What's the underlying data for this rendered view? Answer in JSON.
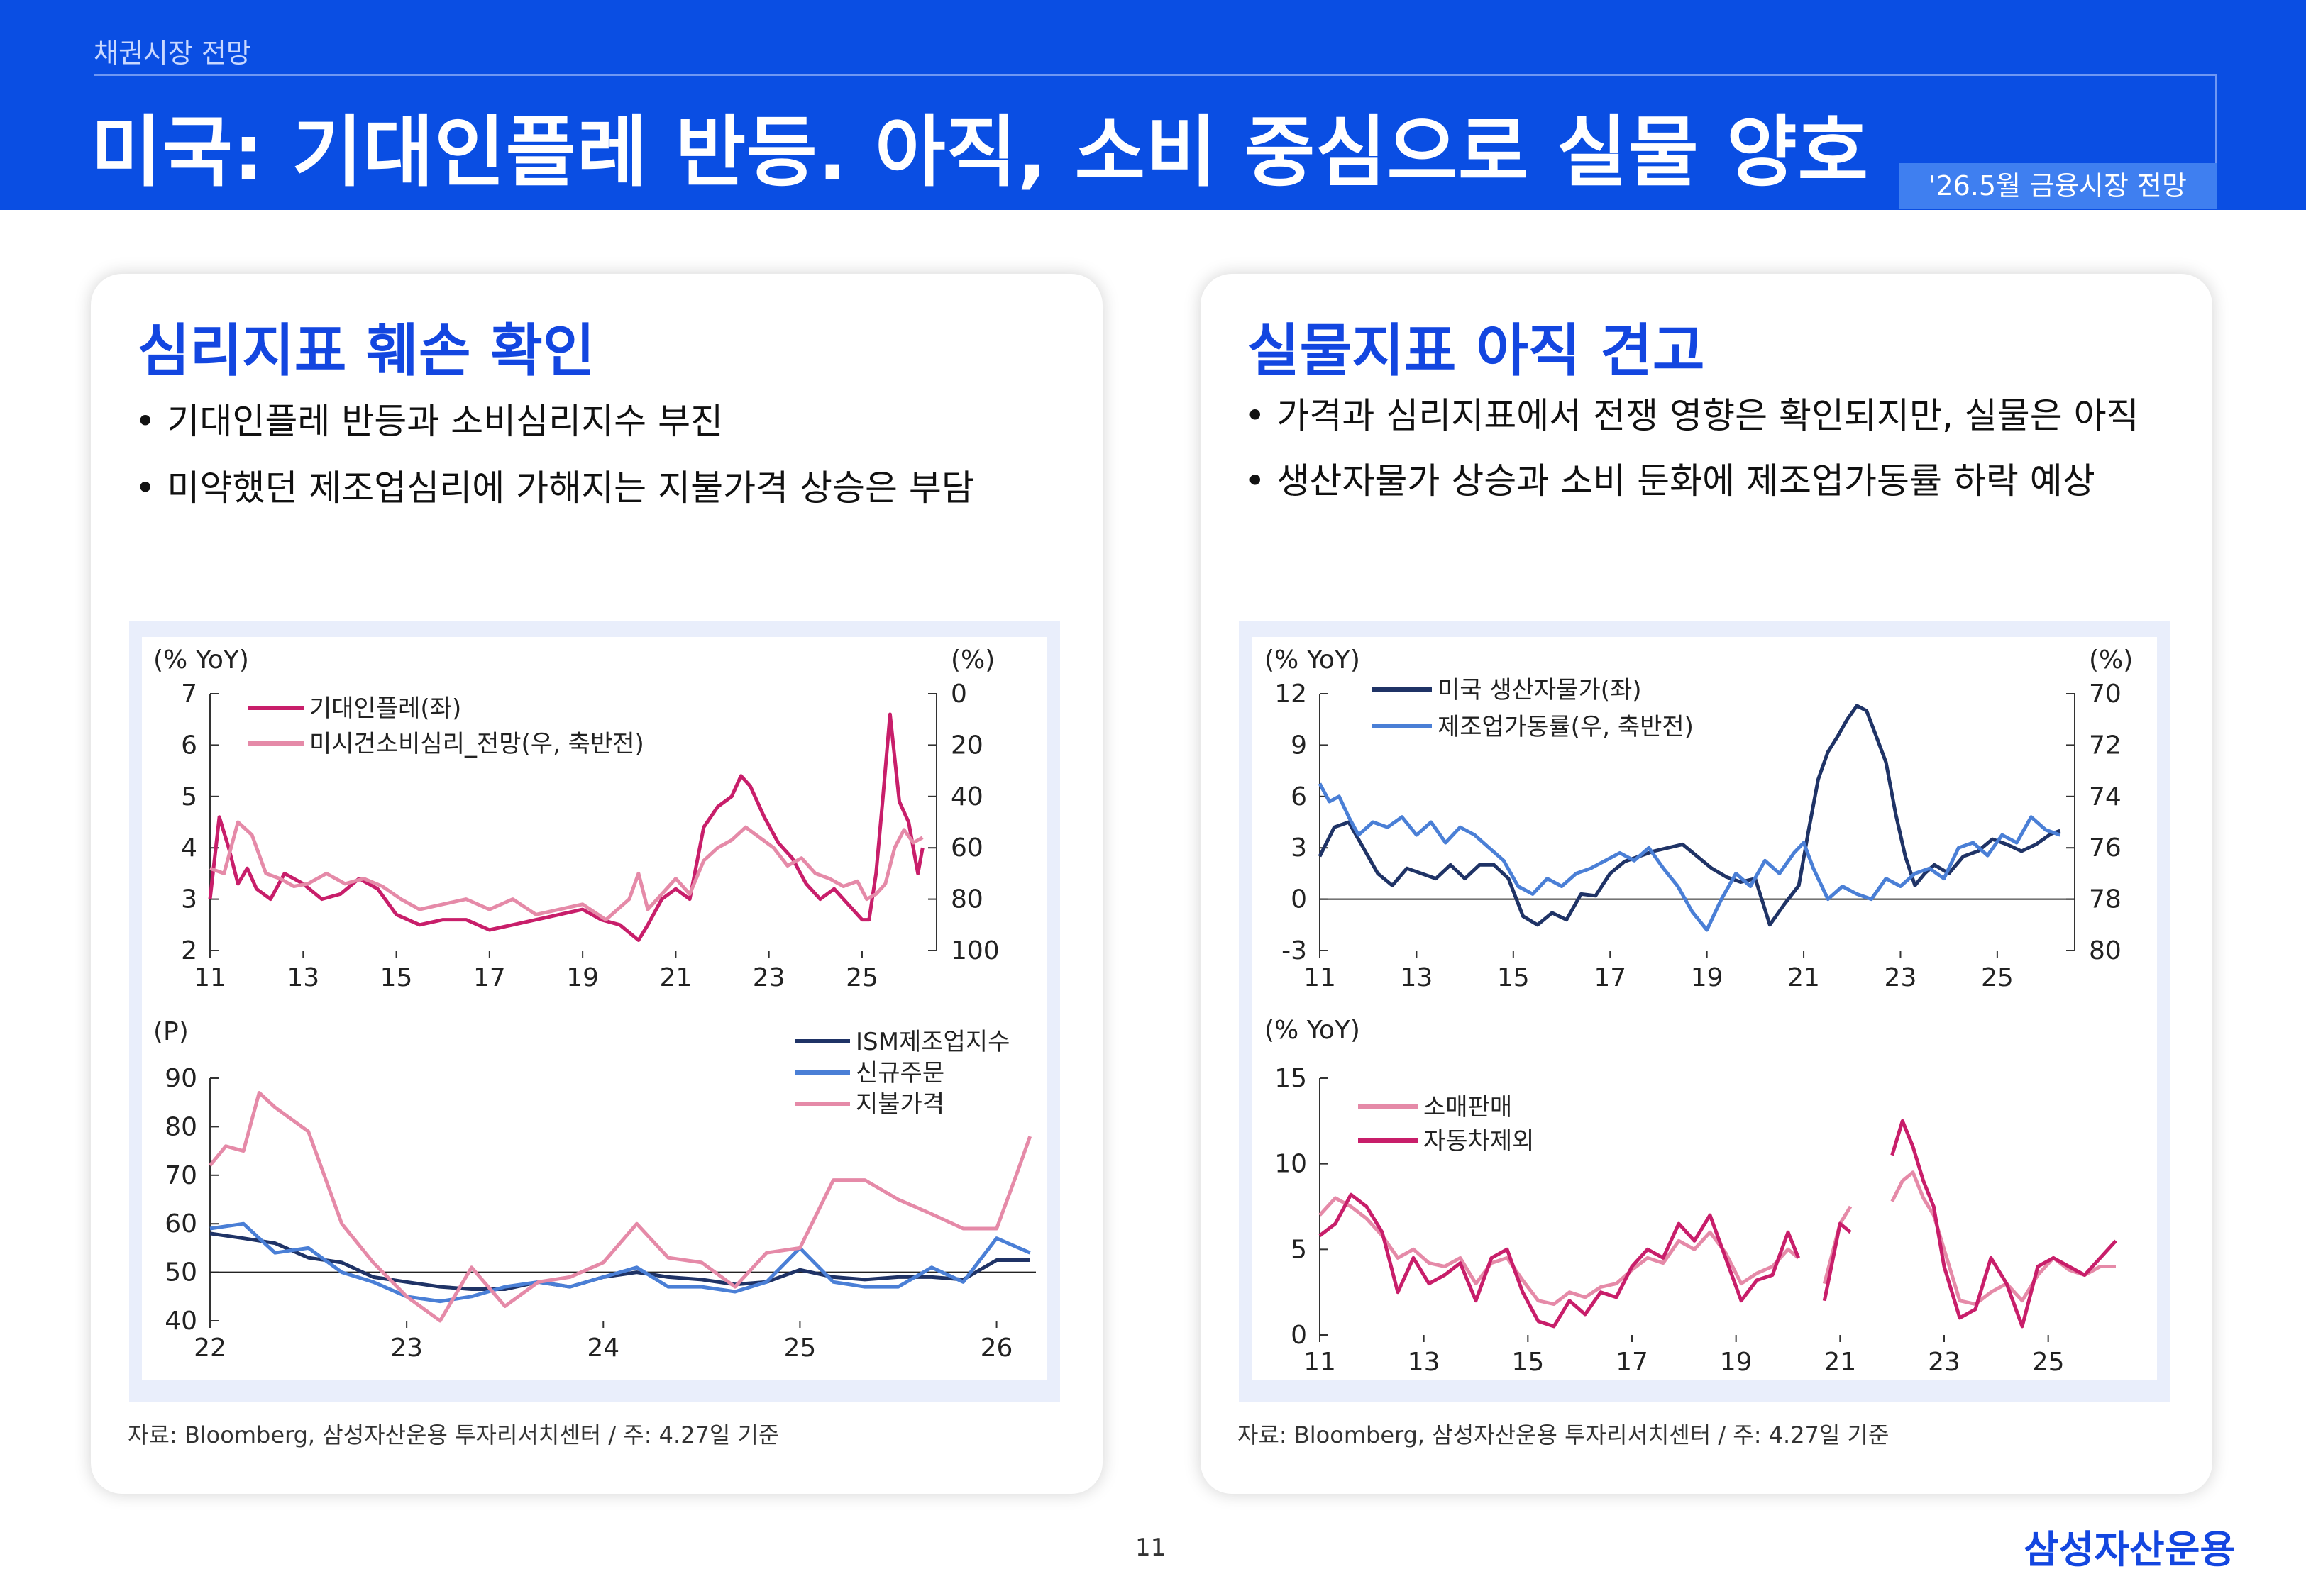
{
  "header": {
    "section": "채권시장 전망",
    "title": "미국: 기대인플레 반등. 아직, 소비 중심으로 실물 양호",
    "tag": "'26.5월 금융시장 전망"
  },
  "left": {
    "heading": "심리지표 훼손 확인",
    "bullets": [
      "• 기대인플레 반등과 소비심리지수 부진",
      "• 미약했던 제조업심리에 가해지는 지불가격 상승은 부담"
    ],
    "source": "자료: Bloomberg, 삼성자산운용 투자리서치센터 / 주: 4.27일 기준"
  },
  "right": {
    "heading": "실물지표 아직 견고",
    "bullets": [
      "• 가격과 심리지표에서 전쟁 영향은 확인되지만, 실물은 아직",
      "• 생산자물가 상승과 소비 둔화에 제조업가동률 하락 예상"
    ],
    "source": "자료: Bloomberg, 삼성자산운용 투자리서치센터 / 주: 4.27일 기준"
  },
  "footer": {
    "page": "11",
    "logo": "삼성자산운용"
  },
  "colors": {
    "header_bg": "#0a4ee3",
    "heading": "#1346e0",
    "crimson": "#c81e6a",
    "pink": "#e58aa8",
    "navy": "#1f3366",
    "blue": "#4a7fd6"
  },
  "chart_data": [
    {
      "type": "line",
      "ylabel_left": "(% YoY)",
      "ylabel_right": "(%)",
      "ylim_left": [
        2,
        7
      ],
      "yticks_left": [
        "7",
        "6",
        "5",
        "4",
        "3",
        "2"
      ],
      "ylim_right": [
        100,
        0
      ],
      "yticks_right": [
        "0",
        "20",
        "40",
        "60",
        "80",
        "100"
      ],
      "xlim": [
        2011,
        2026.6
      ],
      "xticks": [
        "11",
        "13",
        "15",
        "17",
        "19",
        "21",
        "23",
        "25"
      ],
      "legend": "top-left",
      "series": [
        {
          "name": "기대인플레(좌)",
          "axis": "left",
          "color": "#c81e6a",
          "x": [
            2011.0,
            2011.2,
            2011.4,
            2011.6,
            2011.8,
            2012.0,
            2012.3,
            2012.6,
            2013.0,
            2013.4,
            2013.8,
            2014.2,
            2014.6,
            2015.0,
            2015.5,
            2016.0,
            2016.5,
            2017.0,
            2017.5,
            2018.0,
            2018.5,
            2019.0,
            2019.4,
            2019.8,
            2020.2,
            2020.4,
            2020.7,
            2021.0,
            2021.3,
            2021.6,
            2021.9,
            2022.2,
            2022.4,
            2022.6,
            2022.9,
            2023.2,
            2023.5,
            2023.8,
            2024.1,
            2024.4,
            2024.7,
            2025.0,
            2025.15,
            2025.3,
            2025.45,
            2025.6,
            2025.8,
            2026.0,
            2026.2,
            2026.3
          ],
          "y": [
            3.0,
            4.6,
            4.0,
            3.3,
            3.6,
            3.2,
            3.0,
            3.5,
            3.3,
            3.0,
            3.1,
            3.4,
            3.2,
            2.7,
            2.5,
            2.6,
            2.6,
            2.4,
            2.5,
            2.6,
            2.7,
            2.8,
            2.6,
            2.5,
            2.2,
            2.5,
            3.0,
            3.2,
            3.0,
            4.4,
            4.8,
            5.0,
            5.4,
            5.2,
            4.6,
            4.1,
            3.8,
            3.3,
            3.0,
            3.2,
            2.9,
            2.6,
            2.6,
            3.5,
            5.0,
            6.6,
            4.9,
            4.5,
            3.5,
            4.0
          ]
        },
        {
          "name": "미시건소비심리_전망(우, 축반전)",
          "axis": "right",
          "color": "#e58aa8",
          "x": [
            2011.0,
            2011.3,
            2011.6,
            2011.9,
            2012.2,
            2012.5,
            2012.8,
            2013.1,
            2013.5,
            2013.9,
            2014.3,
            2014.7,
            2015.1,
            2015.5,
            2016.0,
            2016.5,
            2017.0,
            2017.5,
            2018.0,
            2018.5,
            2019.0,
            2019.5,
            2020.0,
            2020.2,
            2020.4,
            2020.7,
            2021.0,
            2021.3,
            2021.6,
            2021.9,
            2022.2,
            2022.5,
            2022.8,
            2023.1,
            2023.4,
            2023.7,
            2024.0,
            2024.3,
            2024.6,
            2024.9,
            2025.1,
            2025.3,
            2025.5,
            2025.7,
            2025.9,
            2026.1,
            2026.3
          ],
          "y": [
            68,
            70,
            50,
            55,
            70,
            72,
            75,
            74,
            70,
            74,
            72,
            75,
            80,
            84,
            82,
            80,
            84,
            80,
            86,
            84,
            82,
            88,
            80,
            70,
            84,
            78,
            72,
            78,
            65,
            60,
            57,
            52,
            56,
            60,
            67,
            64,
            70,
            72,
            75,
            73,
            80,
            78,
            74,
            60,
            53,
            58,
            56
          ]
        }
      ]
    },
    {
      "type": "line",
      "ylabel": "(P)",
      "ylim": [
        40,
        90
      ],
      "yticks": [
        "90",
        "80",
        "70",
        "60",
        "50",
        "40"
      ],
      "reference_line": 50,
      "xlim": [
        2022,
        2026.2
      ],
      "xticks": [
        "22",
        "23",
        "24",
        "25",
        "26"
      ],
      "legend": "top-right",
      "series": [
        {
          "name": "ISM제조업지수",
          "color": "#1f3366",
          "x": [
            2022.0,
            2022.17,
            2022.33,
            2022.5,
            2022.67,
            2022.83,
            2023.0,
            2023.17,
            2023.33,
            2023.5,
            2023.67,
            2023.83,
            2024.0,
            2024.17,
            2024.33,
            2024.5,
            2024.67,
            2024.83,
            2025.0,
            2025.17,
            2025.33,
            2025.5,
            2025.67,
            2025.83,
            2026.0,
            2026.17
          ],
          "y": [
            58,
            57,
            56,
            53,
            52,
            49,
            48,
            47,
            46.5,
            46.5,
            48,
            47,
            49,
            50,
            49,
            48.5,
            47.5,
            48,
            50.5,
            49,
            48.5,
            49,
            49,
            48.5,
            52.5,
            52.5
          ]
        },
        {
          "name": "신규주문",
          "color": "#4a7fd6",
          "x": [
            2022.0,
            2022.17,
            2022.33,
            2022.5,
            2022.67,
            2022.83,
            2023.0,
            2023.17,
            2023.33,
            2023.5,
            2023.67,
            2023.83,
            2024.0,
            2024.17,
            2024.33,
            2024.5,
            2024.67,
            2024.83,
            2025.0,
            2025.17,
            2025.33,
            2025.5,
            2025.67,
            2025.83,
            2026.0,
            2026.17
          ],
          "y": [
            59,
            60,
            54,
            55,
            50,
            48,
            45,
            44,
            45,
            47,
            48,
            47,
            49,
            51,
            47,
            47,
            46,
            48,
            55,
            48,
            47,
            47,
            51,
            48,
            57,
            54
          ]
        },
        {
          "name": "지불가격",
          "color": "#e58aa8",
          "x": [
            2022.0,
            2022.08,
            2022.17,
            2022.25,
            2022.33,
            2022.5,
            2022.67,
            2022.83,
            2023.0,
            2023.17,
            2023.33,
            2023.5,
            2023.67,
            2023.83,
            2024.0,
            2024.17,
            2024.33,
            2024.5,
            2024.67,
            2024.83,
            2025.0,
            2025.17,
            2025.33,
            2025.5,
            2025.67,
            2025.83,
            2026.0,
            2026.1,
            2026.17
          ],
          "y": [
            72,
            76,
            75,
            87,
            84,
            79,
            60,
            52,
            45,
            40,
            51,
            43,
            48,
            49,
            52,
            60,
            53,
            52,
            47,
            54,
            55,
            69,
            69,
            65,
            62,
            59,
            59,
            70,
            78
          ]
        }
      ]
    },
    {
      "type": "line",
      "ylabel_left": "(% YoY)",
      "ylabel_right": "(%)",
      "ylim_left": [
        -3,
        12
      ],
      "yticks_left": [
        "12",
        "9",
        "6",
        "3",
        "0",
        "-3"
      ],
      "ylim_right": [
        80,
        70
      ],
      "yticks_right": [
        "70",
        "72",
        "74",
        "76",
        "78",
        "80"
      ],
      "reference_line": 0,
      "xlim": [
        2011,
        2026.6
      ],
      "xticks": [
        "11",
        "13",
        "15",
        "17",
        "19",
        "21",
        "23",
        "25"
      ],
      "legend": "top-left",
      "series": [
        {
          "name": "미국 생산자물가(좌)",
          "axis": "left",
          "color": "#1f3366",
          "x": [
            2011.0,
            2011.3,
            2011.6,
            2011.9,
            2012.2,
            2012.5,
            2012.8,
            2013.1,
            2013.4,
            2013.7,
            2014.0,
            2014.3,
            2014.6,
            2014.9,
            2015.2,
            2015.5,
            2015.8,
            2016.1,
            2016.4,
            2016.7,
            2017.0,
            2017.3,
            2017.6,
            2017.9,
            2018.2,
            2018.5,
            2018.8,
            2019.1,
            2019.4,
            2019.7,
            2020.0,
            2020.3,
            2020.6,
            2020.9,
            2021.1,
            2021.3,
            2021.5,
            2021.7,
            2021.9,
            2022.1,
            2022.3,
            2022.5,
            2022.7,
            2022.9,
            2023.1,
            2023.3,
            2023.5,
            2023.7,
            2024.0,
            2024.3,
            2024.6,
            2024.9,
            2025.2,
            2025.5,
            2025.8,
            2026.1,
            2026.3
          ],
          "y": [
            2.5,
            4.2,
            4.5,
            3.0,
            1.5,
            0.8,
            1.8,
            1.5,
            1.2,
            2.0,
            1.2,
            2.0,
            2.0,
            1.2,
            -1.0,
            -1.5,
            -0.8,
            -1.2,
            0.3,
            0.2,
            1.5,
            2.2,
            2.5,
            2.8,
            3.0,
            3.2,
            2.5,
            1.8,
            1.3,
            1.0,
            1.2,
            -1.5,
            -0.3,
            0.8,
            4.0,
            7.0,
            8.6,
            9.5,
            10.5,
            11.3,
            11.0,
            9.5,
            8.0,
            5.0,
            2.5,
            0.8,
            1.5,
            2.0,
            1.5,
            2.5,
            2.8,
            3.5,
            3.2,
            2.8,
            3.2,
            3.8,
            4.0
          ]
        },
        {
          "name": "제조업가동률(우, 축반전)",
          "axis": "right",
          "color": "#4a7fd6",
          "x": [
            2011.0,
            2011.2,
            2011.4,
            2011.6,
            2011.8,
            2012.1,
            2012.4,
            2012.7,
            2013.0,
            2013.3,
            2013.6,
            2013.9,
            2014.2,
            2014.5,
            2014.8,
            2015.1,
            2015.4,
            2015.7,
            2016.0,
            2016.3,
            2016.6,
            2016.9,
            2017.2,
            2017.5,
            2017.8,
            2018.1,
            2018.4,
            2018.7,
            2019.0,
            2019.3,
            2019.6,
            2019.9,
            2020.2,
            2020.5,
            2020.8,
            2021.0,
            2021.2,
            2021.5,
            2021.8,
            2022.1,
            2022.4,
            2022.7,
            2023.0,
            2023.3,
            2023.6,
            2023.9,
            2024.2,
            2024.5,
            2024.8,
            2025.1,
            2025.4,
            2025.7,
            2026.0,
            2026.3
          ],
          "y": [
            73.5,
            74.2,
            74.0,
            74.8,
            75.5,
            75.0,
            75.2,
            74.8,
            75.5,
            75.0,
            75.8,
            75.2,
            75.5,
            76.0,
            76.5,
            77.5,
            77.8,
            77.2,
            77.5,
            77.0,
            76.8,
            76.5,
            76.2,
            76.5,
            76.0,
            76.8,
            77.5,
            78.5,
            79.2,
            78.0,
            77.0,
            77.5,
            76.5,
            77.0,
            76.2,
            75.8,
            76.8,
            78.0,
            77.5,
            77.8,
            78.0,
            77.2,
            77.5,
            77.0,
            76.8,
            77.2,
            76.0,
            75.8,
            76.3,
            75.5,
            75.8,
            74.8,
            75.3,
            75.5
          ]
        }
      ]
    },
    {
      "type": "line",
      "ylabel": "(% YoY)",
      "ylim": [
        0,
        15
      ],
      "yticks": [
        "15",
        "10",
        "5",
        "0"
      ],
      "xlim": [
        2011,
        2026.6
      ],
      "xticks": [
        "11",
        "13",
        "15",
        "17",
        "19",
        "21",
        "23",
        "25"
      ],
      "legend": "top-left",
      "series": [
        {
          "name": "소매판매",
          "color": "#e58aa8",
          "x": [
            2011.0,
            2011.3,
            2011.6,
            2011.9,
            2012.2,
            2012.5,
            2012.8,
            2013.1,
            2013.4,
            2013.7,
            2014.0,
            2014.3,
            2014.6,
            2014.9,
            2015.2,
            2015.5,
            2015.8,
            2016.1,
            2016.4,
            2016.7,
            2017.0,
            2017.3,
            2017.6,
            2017.9,
            2018.2,
            2018.5,
            2018.8,
            2019.1,
            2019.4,
            2019.7,
            2020.0,
            2020.2,
            null,
            2020.7,
            2021.0,
            2021.2,
            null,
            2022.0,
            2022.2,
            2022.4,
            2022.6,
            2022.8,
            2023.0,
            2023.3,
            2023.6,
            2023.9,
            2024.2,
            2024.5,
            2024.8,
            2025.1,
            2025.4,
            2025.7,
            2026.0,
            2026.3
          ],
          "y": [
            7.0,
            8.0,
            7.5,
            6.8,
            5.8,
            4.5,
            5.0,
            4.2,
            4.0,
            4.5,
            3.0,
            4.2,
            4.5,
            3.2,
            2.0,
            1.8,
            2.5,
            2.2,
            2.8,
            3.0,
            3.8,
            4.5,
            4.2,
            5.5,
            5.0,
            6.0,
            4.8,
            3.0,
            3.6,
            4.0,
            5.0,
            4.5,
            null,
            3.0,
            6.5,
            7.5,
            null,
            7.8,
            9.0,
            9.5,
            8.0,
            7.0,
            5.0,
            2.0,
            1.8,
            2.5,
            3.0,
            2.0,
            3.5,
            4.5,
            3.8,
            3.5,
            4.0,
            4.0
          ]
        },
        {
          "name": "자동차제외",
          "color": "#c81e6a",
          "x": [
            2011.0,
            2011.3,
            2011.6,
            2011.9,
            2012.2,
            2012.5,
            2012.8,
            2013.1,
            2013.4,
            2013.7,
            2014.0,
            2014.3,
            2014.6,
            2014.9,
            2015.2,
            2015.5,
            2015.8,
            2016.1,
            2016.4,
            2016.7,
            2017.0,
            2017.3,
            2017.6,
            2017.9,
            2018.2,
            2018.5,
            2018.8,
            2019.1,
            2019.4,
            2019.7,
            2020.0,
            2020.2,
            null,
            2020.7,
            2021.0,
            2021.2,
            null,
            2022.0,
            2022.2,
            2022.4,
            2022.6,
            2022.8,
            2023.0,
            2023.3,
            2023.6,
            2023.9,
            2024.2,
            2024.5,
            2024.8,
            2025.1,
            2025.4,
            2025.7,
            2026.0,
            2026.3
          ],
          "y": [
            5.8,
            6.5,
            8.2,
            7.5,
            6.0,
            2.5,
            4.5,
            3.0,
            3.5,
            4.2,
            2.0,
            4.5,
            5.0,
            2.5,
            0.8,
            0.5,
            2.0,
            1.2,
            2.5,
            2.2,
            4.0,
            5.0,
            4.5,
            6.5,
            5.5,
            7.0,
            4.5,
            2.0,
            3.2,
            3.5,
            6.0,
            4.5,
            null,
            2.0,
            6.5,
            6.0,
            null,
            10.5,
            12.5,
            11.0,
            9.0,
            7.5,
            4.0,
            1.0,
            1.5,
            4.5,
            3.0,
            0.5,
            4.0,
            4.5,
            4.0,
            3.5,
            4.5,
            5.5
          ]
        }
      ]
    }
  ]
}
